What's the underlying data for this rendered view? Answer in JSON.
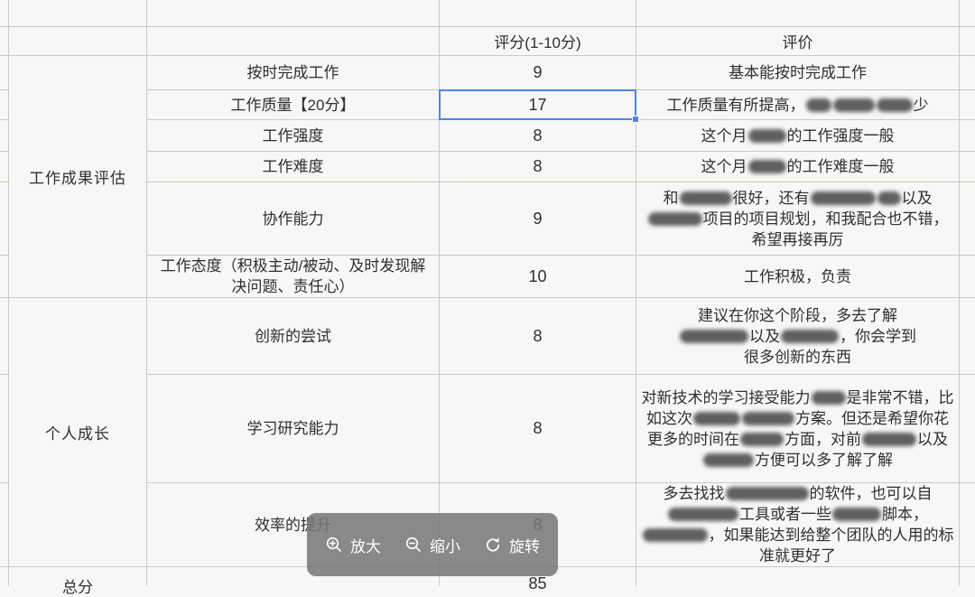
{
  "sheet": {
    "header": {
      "score": "评分(1-10分)",
      "comment": "评价"
    },
    "categories": [
      {
        "label": "工作成果评估"
      },
      {
        "label": "个人成长"
      }
    ],
    "rows": [
      {
        "item": "按时完成工作",
        "score": "9",
        "comment": [
          [
            "t",
            "基本能按时完成工作"
          ]
        ]
      },
      {
        "item": "工作质量【20分】",
        "score": "17",
        "selected": true,
        "comment": [
          [
            "t",
            "工作质量有所提高，"
          ],
          [
            "s",
            28
          ],
          [
            "s",
            46
          ],
          [
            "s",
            40
          ],
          [
            "t",
            "少"
          ]
        ]
      },
      {
        "item": "工作强度",
        "score": "8",
        "comment": [
          [
            "t",
            "这个月"
          ],
          [
            "s",
            42
          ],
          [
            "t",
            "的工作强度一般"
          ]
        ]
      },
      {
        "item": "工作难度",
        "score": "8",
        "comment": [
          [
            "t",
            "这个月"
          ],
          [
            "s",
            42
          ],
          [
            "t",
            "的工作难度一般"
          ]
        ]
      },
      {
        "item": "协作能力",
        "score": "9",
        "comment": [
          [
            "t",
            "和"
          ],
          [
            "s",
            58
          ],
          [
            "t",
            "很好，还有"
          ],
          [
            "s",
            72
          ],
          [
            "s",
            26
          ],
          [
            "t",
            "以及"
          ],
          [
            "s",
            60
          ],
          [
            "t",
            "项目的项目规划，和我配合也不错，希望再接再厉"
          ]
        ]
      },
      {
        "item": "工作态度（积极主动/被动、及时发现解决问题、责任心）",
        "score": "10",
        "comment": [
          [
            "t",
            "工作积极，负责"
          ]
        ]
      },
      {
        "item": "创新的尝试",
        "score": "8",
        "comment": [
          [
            "t",
            "建议在你这个阶段，多去了解"
          ],
          [
            "b"
          ],
          [
            "s",
            76
          ],
          [
            "t",
            "以及"
          ],
          [
            "s",
            64
          ],
          [
            "t",
            "，你会学到"
          ],
          [
            "b"
          ],
          [
            "t",
            "很多创新的东西"
          ]
        ]
      },
      {
        "item": "学习研究能力",
        "score": "8",
        "comment": [
          [
            "t",
            "对新技术的学习接受能力"
          ],
          [
            "s",
            38
          ],
          [
            "t",
            "是非常不错，比如这次"
          ],
          [
            "s",
            52
          ],
          [
            "s",
            58
          ],
          [
            "t",
            "方案。但还是希望你花更多的时间在"
          ],
          [
            "s",
            48
          ],
          [
            "t",
            "方面，对前"
          ],
          [
            "s",
            60
          ],
          [
            "t",
            "以及"
          ],
          [
            "s",
            56
          ],
          [
            "t",
            "方便可以多了解了解"
          ]
        ]
      },
      {
        "item": "效率的提升",
        "score": "8",
        "comment": [
          [
            "t",
            "多去找找"
          ],
          [
            "s",
            92
          ],
          [
            "t",
            "的软件，也可以自"
          ],
          [
            "s",
            78
          ],
          [
            "t",
            "工具或者一些"
          ],
          [
            "s",
            54
          ],
          [
            "t",
            "脚本，"
          ],
          [
            "s",
            72
          ],
          [
            "t",
            "，如果能达到给整个团队的人用的标准就更好了"
          ]
        ]
      }
    ],
    "footer": {
      "label": "总分",
      "score": "85"
    }
  },
  "toolbar": {
    "zoom_in": "放大",
    "zoom_out": "缩小",
    "rotate": "旋转"
  },
  "colors": {
    "selection": "#4a86e8",
    "grid": "#c9c9c9",
    "toolbar_bg": "rgba(117,117,117,0.85)",
    "text": "#2f2f2f"
  }
}
